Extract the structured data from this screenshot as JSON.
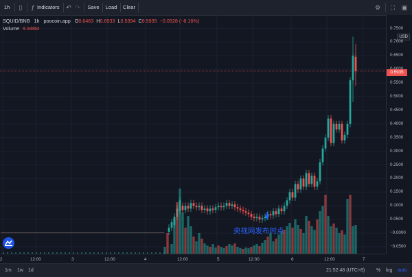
{
  "toolbar": {
    "interval": "1h",
    "indicators": "Indicators",
    "save": "Save",
    "load": "Load",
    "clear": "Clear"
  },
  "legend": {
    "symbol": "SQUID/BNB",
    "interval": "1h",
    "source": "poocoin.app",
    "open_label": "O",
    "open": "0.6463",
    "high_label": "H",
    "high": "0.6933",
    "low_label": "L",
    "low": "0.5394",
    "close_label": "C",
    "close": "0.5935",
    "change": "−0.0528 (−8.16%)",
    "volume_label": "Volume",
    "volume": "9.348M"
  },
  "price_axis": {
    "currency": "USD",
    "current_price": "0.5935",
    "ticks": [
      "0.7500",
      "0.7000",
      "0.6500",
      "0.6000",
      "0.5500",
      "0.5000",
      "0.4500",
      "0.4000",
      "0.3500",
      "0.3000",
      "0.2500",
      "0.2000",
      "0.1500",
      "0.1000",
      "0.0500",
      "−0.0000",
      "−0.0500"
    ]
  },
  "time_axis": {
    "ticks": [
      "2",
      "12:00",
      "3",
      "12:00",
      "4",
      "12:00",
      "5",
      "12:00",
      "6",
      "12:00",
      "7"
    ]
  },
  "annotation": "央视网发布时点",
  "bottom_bar": {
    "ranges": [
      "1m",
      "1w",
      "1d"
    ],
    "clock": "21:52:48 (UTC+8)",
    "percent": "%",
    "log": "log",
    "auto": "auto"
  },
  "colors": {
    "background": "#131722",
    "up": "#26a69a",
    "down": "#ef5350",
    "accent": "#2962ff"
  },
  "icons": [
    "chart-type-icon",
    "indicators-icon",
    "undo-icon",
    "redo-icon",
    "settings-icon",
    "camera-icon",
    "tradingview-logo-icon",
    "marker-arrow-icon"
  ]
}
